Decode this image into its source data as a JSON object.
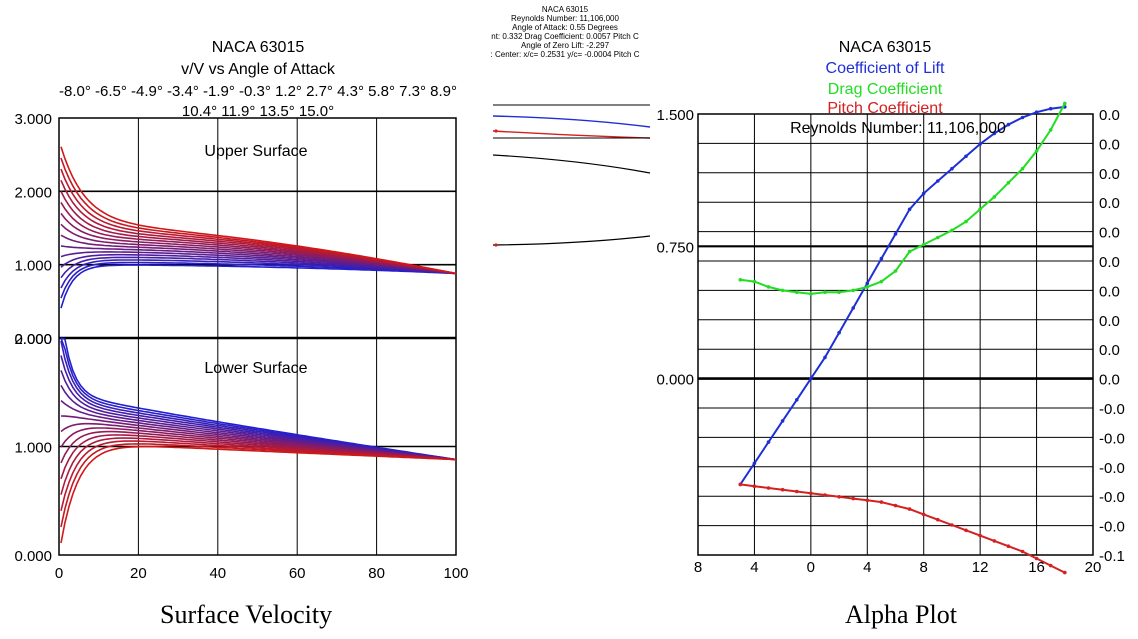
{
  "captions": {
    "left": "Surface Velocity",
    "right": "Alpha Plot"
  },
  "colors": {
    "blue": "#1f2fd6",
    "red": "#d42020",
    "green": "#22dd22",
    "grid": "#000000",
    "blueAngle": "#2020d0",
    "redAngle": "#d01818"
  },
  "chart_data": [
    {
      "id": "surface-velocity",
      "type": "line",
      "title": "NACA 63015",
      "subtitle": "v/V vs Angle of Attack",
      "angles_line1": "-8.0° -6.5° -4.9° -3.4° -1.9° -0.3° 1.2° 2.7° 4.3° 5.8° 7.3° 8.9°",
      "angles_line2": "10.4° 11.9° 13.5° 15.0°",
      "angles": [
        -8.0,
        -6.5,
        -4.9,
        -3.4,
        -1.9,
        -0.3,
        1.2,
        2.7,
        4.3,
        5.8,
        7.3,
        8.9,
        10.4,
        11.9,
        13.5,
        15.0
      ],
      "xlim": [
        0,
        100
      ],
      "ylim_upper": [
        0,
        3
      ],
      "ylim_lower": [
        0,
        2
      ],
      "x_ticks": [
        "0",
        "20",
        "40",
        "60",
        "80",
        "100"
      ],
      "y_ticks_upper": [
        "3.000",
        "2.000",
        "1.000",
        "0.000"
      ],
      "y_ticks_lower": [
        "2.000",
        "1.000",
        "0.000"
      ],
      "panel_labels": {
        "upper": "Upper Surface",
        "lower": "Lower Surface"
      },
      "upper_le_velocity": {
        "min": 0.3,
        "max": 2.7
      },
      "lower_le_velocity": {
        "min": 0.0,
        "max": 2.4
      },
      "te_velocity": 0.88
    },
    {
      "id": "center-profile",
      "type": "line",
      "header": [
        "NACA 63015",
        "Reynolds Number: 11,106,000",
        "Angle of Attack: 0.55 Degrees",
        "nt: 0.332  Drag Coefficient: 0.0057  Pitch C",
        "Angle of Zero Lift: -2.297",
        ": Center: x/c= 0.2531  y/c= -0.0004  Pitch C"
      ]
    },
    {
      "id": "alpha-plot",
      "type": "line",
      "title": "NACA 63015",
      "legend": [
        "Coefficient of Lift",
        "Drag Coefficient",
        "Pitch Coefficient"
      ],
      "annotation": "Reynolds Number: 11,106,000",
      "xlim": [
        -8,
        20
      ],
      "x_ticks": [
        "8",
        "4",
        "0",
        "4",
        "8",
        "12",
        "16",
        "20"
      ],
      "ylim": [
        -1,
        1.5
      ],
      "y_ticks_left": [
        "1.500",
        "0.750",
        "0.000"
      ],
      "y_ticks_right": [
        "0.0",
        "0.0",
        "0.0",
        "0.0",
        "0.0",
        "0.0",
        "0.0",
        "0.0",
        "0.0",
        "0.0",
        "-0.0",
        "-0.0",
        "-0.0",
        "-0.0",
        "-0.0",
        "-0.1"
      ],
      "series": [
        {
          "name": "Coefficient of Lift",
          "x": [
            -5,
            -4,
            -3,
            -2,
            -1,
            0,
            1,
            2,
            3,
            4,
            5,
            6,
            7,
            8,
            9,
            10,
            11,
            12,
            13,
            14,
            15,
            16,
            17,
            18
          ],
          "y": [
            -0.6,
            -0.48,
            -0.36,
            -0.24,
            -0.12,
            0.0,
            0.12,
            0.26,
            0.4,
            0.54,
            0.68,
            0.82,
            0.96,
            1.05,
            1.12,
            1.19,
            1.26,
            1.33,
            1.39,
            1.44,
            1.48,
            1.51,
            1.53,
            1.54
          ]
        },
        {
          "name": "Drag Coefficient",
          "x": [
            -5,
            -4,
            -3,
            -2,
            -1,
            0,
            1,
            2,
            3,
            4,
            5,
            6,
            7,
            8,
            9,
            10,
            11,
            12,
            13,
            14,
            15,
            16,
            17,
            18
          ],
          "y": [
            0.56,
            0.55,
            0.52,
            0.5,
            0.49,
            0.48,
            0.49,
            0.49,
            0.5,
            0.52,
            0.55,
            0.61,
            0.72,
            0.76,
            0.8,
            0.84,
            0.89,
            0.96,
            1.03,
            1.11,
            1.19,
            1.29,
            1.41,
            1.56
          ]
        },
        {
          "name": "Pitch Coefficient",
          "x": [
            -5,
            -4,
            -3,
            -2,
            -1,
            0,
            1,
            2,
            3,
            4,
            5,
            6,
            7,
            8,
            9,
            10,
            11,
            12,
            13,
            14,
            15,
            16,
            17,
            18
          ],
          "y": [
            -0.6,
            -0.61,
            -0.62,
            -0.63,
            -0.64,
            -0.65,
            -0.66,
            -0.67,
            -0.68,
            -0.69,
            -0.7,
            -0.72,
            -0.74,
            -0.77,
            -0.8,
            -0.83,
            -0.86,
            -0.89,
            -0.92,
            -0.95,
            -0.98,
            -1.02,
            -1.06,
            -1.1
          ]
        }
      ]
    }
  ]
}
